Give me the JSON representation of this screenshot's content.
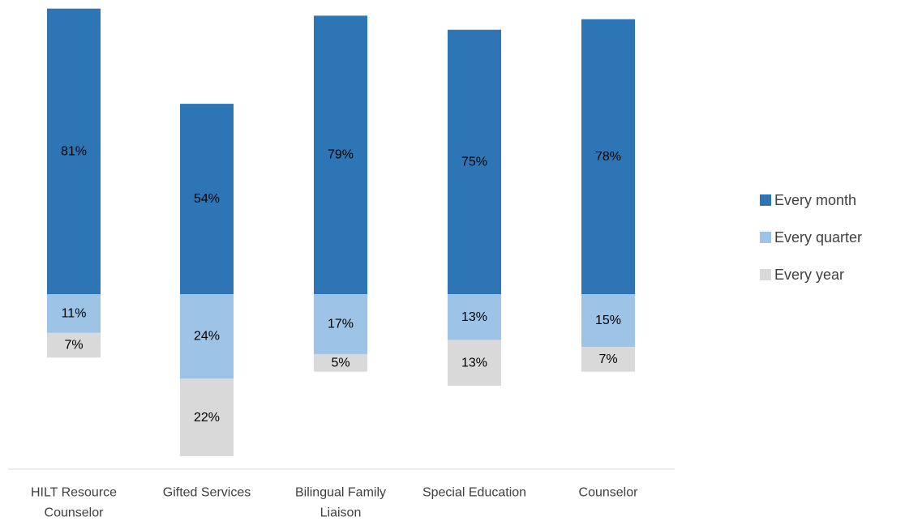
{
  "chart_data": {
    "type": "bar",
    "stacked": true,
    "categories": [
      [
        "HILT Resource",
        "Counselor"
      ],
      [
        "Gifted Services"
      ],
      [
        "Bilingual Family",
        "Liaison"
      ],
      [
        "Special Education"
      ],
      [
        "Counselor"
      ]
    ],
    "series": [
      {
        "name": "Every year",
        "color": "#D9D9D9",
        "values": [
          7,
          22,
          5,
          13,
          7
        ],
        "labels": [
          "7%",
          "22%",
          "5%",
          "13%",
          "7%"
        ]
      },
      {
        "name": "Every quarter",
        "color": "#9DC3E6",
        "values": [
          11,
          24,
          17,
          13,
          15
        ],
        "labels": [
          "11%",
          "24%",
          "17%",
          "13%",
          "15%"
        ]
      },
      {
        "name": "Every month",
        "color": "#2E75B6",
        "values": [
          81,
          54,
          79,
          75,
          78
        ],
        "labels": [
          "81%",
          "54%",
          "79%",
          "75%",
          "78%"
        ]
      }
    ],
    "legend_order": [
      "Every month",
      "Every quarter",
      "Every year"
    ],
    "legend_position": "right",
    "ylim": [
      0,
      100
    ],
    "grid": false,
    "baseline_value": 100,
    "title": "",
    "xlabel": "",
    "ylabel": ""
  }
}
